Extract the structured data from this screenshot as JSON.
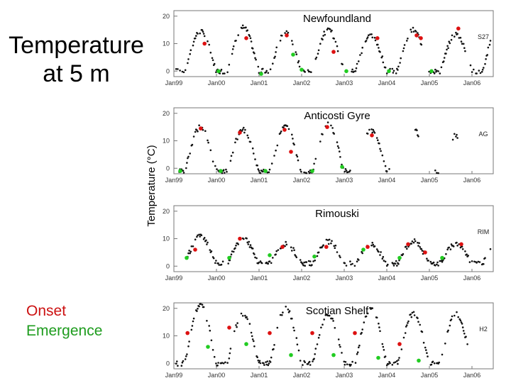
{
  "title_line1": "Temperature",
  "title_line2": "at 5 m",
  "y_axis_title": "Temperature (°C)",
  "legend": {
    "onset_label": "Onset",
    "emergence_label": "Emergence",
    "onset_color": "#dd1111",
    "emergence_color": "#22cc22",
    "observation_color": "#111111"
  },
  "chart_data": [
    {
      "type": "scatter",
      "title": "Newfoundland",
      "site_code": "S27",
      "ylim": [
        -2,
        22
      ],
      "yticks": [
        0,
        10,
        20
      ],
      "xlim": [
        1999.0,
        2006.5
      ],
      "xticks": [
        1999,
        2000,
        2001,
        2002,
        2003,
        2004,
        2005,
        2006
      ],
      "xticklabels": [
        "Jan99",
        "Jan00",
        "Jan01",
        "Jan02",
        "Jan03",
        "Jan04",
        "Jan05",
        "Jan06"
      ],
      "peaks": [
        14.5,
        16.0,
        14.0,
        15.0,
        13.0,
        15.0,
        13.5,
        17.0
      ],
      "minimum": 0.0,
      "observed_ranges": [
        [
          1999.05,
          2006.45
        ]
      ],
      "onset": [
        [
          1999.72,
          10.0
        ],
        [
          2000.7,
          12.0
        ],
        [
          2001.65,
          13.0
        ],
        [
          2002.75,
          7.0
        ],
        [
          2003.78,
          12.0
        ],
        [
          2004.7,
          13.0
        ],
        [
          2004.8,
          12.0
        ],
        [
          2005.68,
          15.5
        ]
      ],
      "emergence": [
        [
          2000.05,
          0.0
        ],
        [
          2001.05,
          -1.0
        ],
        [
          2001.8,
          6.0
        ],
        [
          2003.05,
          0.0
        ],
        [
          2004.05,
          0.0
        ],
        [
          2005.05,
          0.0
        ],
        [
          2002.0,
          0.5
        ]
      ]
    },
    {
      "type": "scatter",
      "title": "Anticosti Gyre",
      "site_code": "AG",
      "ylim": [
        -2,
        22
      ],
      "yticks": [
        0,
        10,
        20
      ],
      "xlim": [
        1999.0,
        2006.5
      ],
      "xticks": [
        1999,
        2000,
        2001,
        2002,
        2003,
        2004,
        2005,
        2006
      ],
      "xticklabels": [
        "Jan99",
        "Jan00",
        "Jan01",
        "Jan02",
        "Jan03",
        "Jan04",
        "Jan05",
        "Jan06"
      ],
      "peaks": [
        15.0,
        14.0,
        15.0,
        16.0,
        14.0,
        14.0,
        12.0,
        11.0
      ],
      "minimum": -1.0,
      "observed_ranges": [
        [
          1999.1,
          2003.15
        ],
        [
          2003.5,
          2004.1
        ],
        [
          2004.65,
          2004.75
        ],
        [
          2005.1,
          2005.25
        ],
        [
          2005.55,
          2005.72
        ]
      ],
      "onset": [
        [
          1999.63,
          14.5
        ],
        [
          2000.55,
          13.0
        ],
        [
          2001.6,
          14.0
        ],
        [
          2001.75,
          6.0
        ],
        [
          2002.6,
          15.0
        ],
        [
          2003.65,
          12.0
        ]
      ],
      "emergence": [
        [
          1999.15,
          -1.0
        ],
        [
          2000.1,
          -1.0
        ],
        [
          2001.15,
          -1.0
        ],
        [
          2002.25,
          -1.0
        ],
        [
          2002.95,
          0.5
        ]
      ]
    },
    {
      "type": "scatter",
      "title": "Rimouski",
      "site_code": "RIM",
      "ylim": [
        -2,
        22
      ],
      "yticks": [
        0,
        10,
        20
      ],
      "xlim": [
        1999.0,
        2006.5
      ],
      "xticks": [
        1999,
        2000,
        2001,
        2002,
        2003,
        2004,
        2005,
        2006
      ],
      "xticklabels": [
        "Jan99",
        "Jan00",
        "Jan01",
        "Jan02",
        "Jan03",
        "Jan04",
        "Jan05",
        "Jan06"
      ],
      "peaks": [
        11.0,
        10.0,
        8.0,
        9.0,
        8.0,
        9.0,
        8.0,
        10.0
      ],
      "minimum": 1.0,
      "observed_ranges": [
        [
          1999.3,
          2006.45
        ]
      ],
      "onset": [
        [
          1999.5,
          6.0
        ],
        [
          2000.55,
          10.0
        ],
        [
          2001.55,
          7.0
        ],
        [
          2002.58,
          7.0
        ],
        [
          2003.55,
          7.0
        ],
        [
          2004.5,
          8.0
        ],
        [
          2004.9,
          5.0
        ],
        [
          2005.75,
          8.0
        ]
      ],
      "emergence": [
        [
          1999.3,
          3.0
        ],
        [
          2000.3,
          3.0
        ],
        [
          2001.25,
          4.0
        ],
        [
          2002.3,
          3.5
        ],
        [
          2003.45,
          6.0
        ],
        [
          2004.3,
          3.0
        ],
        [
          2005.3,
          3.0
        ]
      ]
    },
    {
      "type": "scatter",
      "title": "Scotian Shelf",
      "site_code": "H2",
      "ylim": [
        -2,
        22
      ],
      "yticks": [
        0,
        10,
        20
      ],
      "xlim": [
        1999.0,
        2006.5
      ],
      "xticks": [
        1999,
        2000,
        2001,
        2002,
        2003,
        2004,
        2005,
        2006
      ],
      "xticklabels": [
        "Jan99",
        "Jan00",
        "Jan01",
        "Jan02",
        "Jan03",
        "Jan04",
        "Jan05",
        "Jan06"
      ],
      "peaks": [
        21.0,
        18.0,
        20.0,
        18.0,
        20.0,
        18.0,
        18.0,
        18.0
      ],
      "minimum": 0.0,
      "observed_ranges": [
        [
          1999.05,
          2005.9
        ]
      ],
      "onset": [
        [
          1999.32,
          11.0
        ],
        [
          2000.3,
          13.0
        ],
        [
          2001.25,
          11.0
        ],
        [
          2002.25,
          11.0
        ],
        [
          2003.25,
          11.0
        ],
        [
          2004.3,
          7.0
        ]
      ],
      "emergence": [
        [
          1999.8,
          6.0
        ],
        [
          2000.7,
          7.0
        ],
        [
          2001.75,
          3.0
        ],
        [
          2002.75,
          3.0
        ],
        [
          2003.8,
          2.0
        ],
        [
          2004.75,
          1.0
        ]
      ]
    }
  ]
}
